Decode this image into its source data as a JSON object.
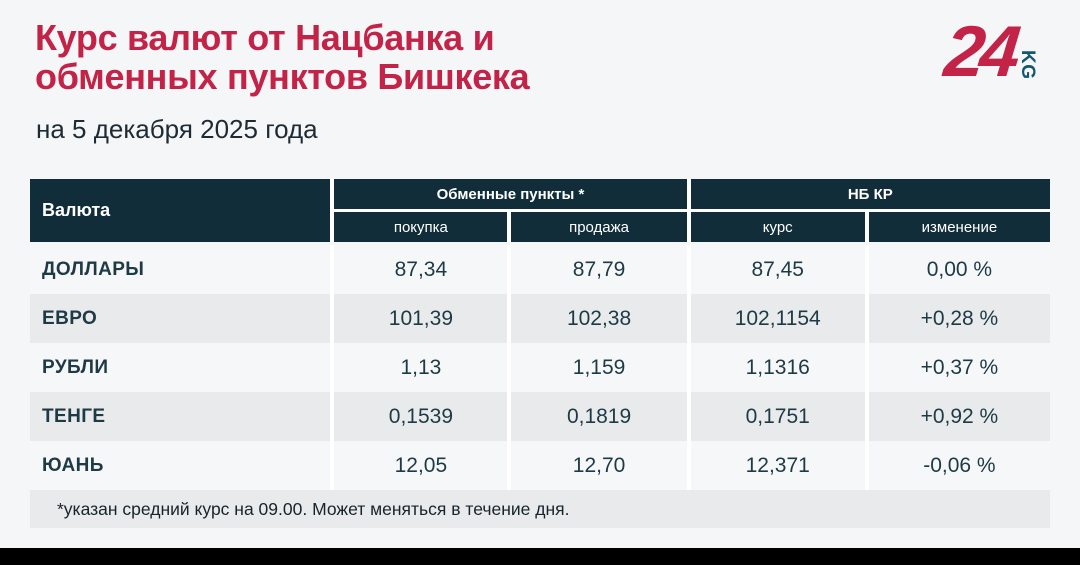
{
  "logo": {
    "number": "24",
    "suffix": "KG"
  },
  "colors": {
    "accent_red": "#c22347",
    "header_dark": "#112d39",
    "row_light": "#f6f7f9",
    "row_gray": "#e8eaec",
    "logo_teal": "#16566e",
    "page_bg": "#f5f6f8"
  },
  "chart_data": {
    "type": "table",
    "title": "Курс валют от Нацбанка и обменных пунктов Бишкека",
    "title_lines": [
      "Курс валют от Нацбанка и",
      "обменных пунктов Бишкека"
    ],
    "date": "на 5 декабря 2025 года",
    "footnote": "*указан средний курс на 09.00. Может меняться в течение дня.",
    "header": {
      "currency": "Валюта",
      "groups": [
        {
          "label": "Обменные пункты *",
          "sub": [
            "покупка",
            "продажа"
          ]
        },
        {
          "label": "НБ КР",
          "sub": [
            "курс",
            "изменение"
          ]
        }
      ]
    },
    "rows": [
      {
        "currency": "ДОЛЛАРЫ",
        "buy": "87,34",
        "sell": "87,79",
        "rate": "87,45",
        "change": "0,00 %"
      },
      {
        "currency": "ЕВРО",
        "buy": "101,39",
        "sell": "102,38",
        "rate": "102,1154",
        "change": "+0,28 %"
      },
      {
        "currency": "РУБЛИ",
        "buy": "1,13",
        "sell": "1,159",
        "rate": "1,1316",
        "change": "+0,37 %"
      },
      {
        "currency": "ТЕНГЕ",
        "buy": "0,1539",
        "sell": "0,1819",
        "rate": "0,1751",
        "change": "+0,92 %"
      },
      {
        "currency": "ЮАНЬ",
        "buy": "12,05",
        "sell": "12,70",
        "rate": "12,371",
        "change": "-0,06 %"
      }
    ]
  }
}
